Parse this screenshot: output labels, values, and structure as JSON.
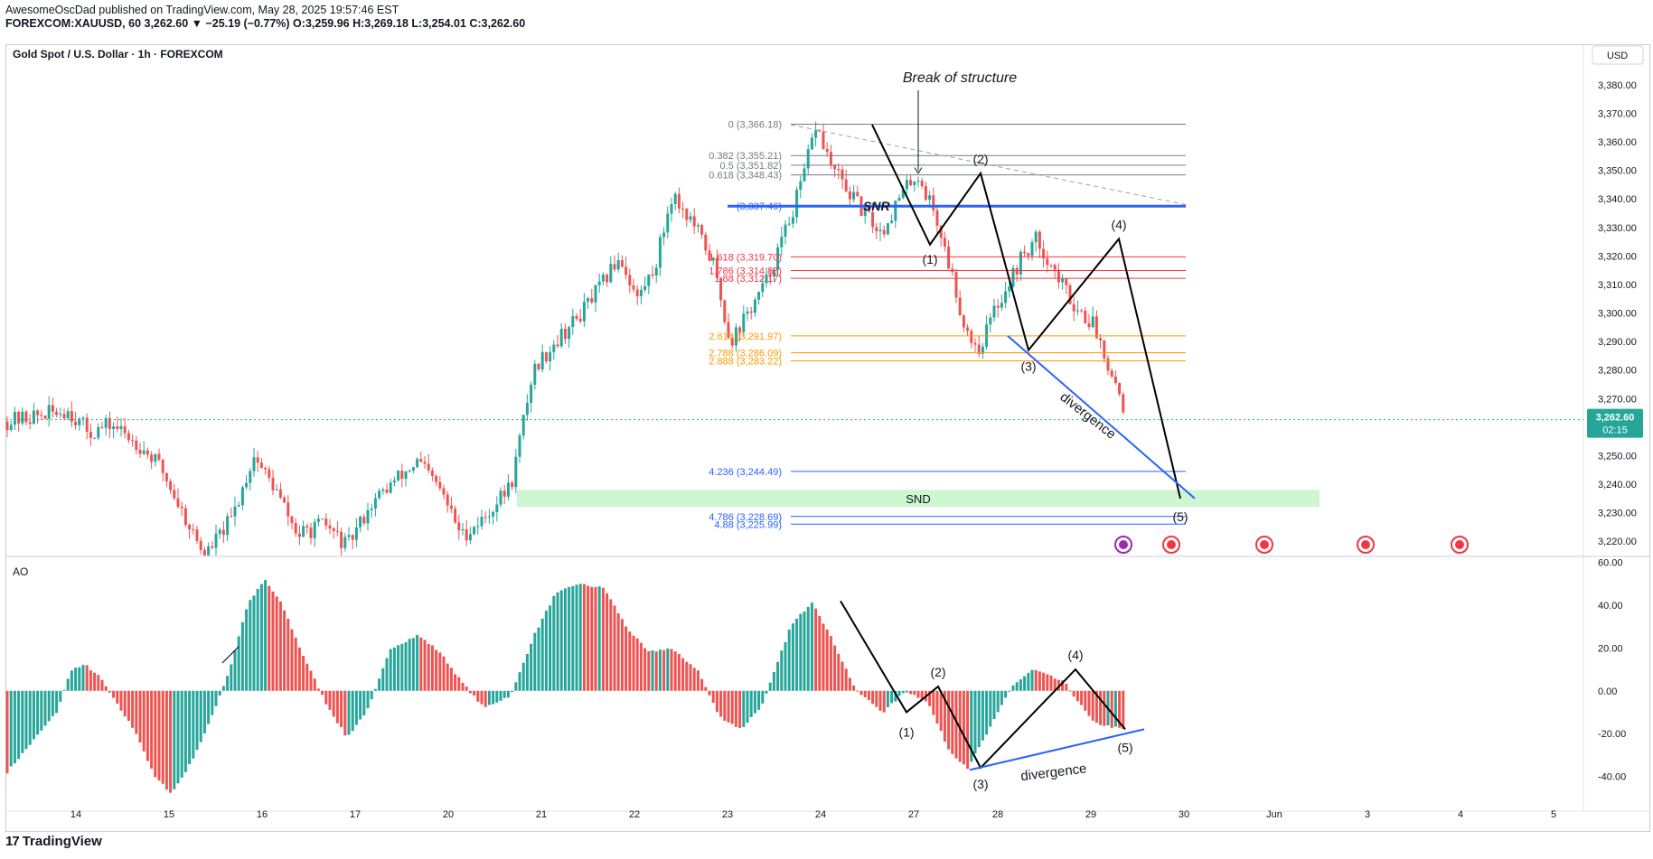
{
  "header": {
    "line1": "AwesomeOscDad published on TradingView.com, May 28, 2025 19:57:46 EST",
    "line2": "FOREXCOM:XAUUSD, 60  3,262.60 ▼ −25.19 (−0.77%)  O:3,259.96  H:3,269.18  L:3,254.01  C:3,262.60"
  },
  "footer": {
    "brand": "TradingView",
    "logo": "17"
  },
  "chart_data": [
    {
      "type": "candlestick",
      "title": "Gold Spot / U.S. Dollar · 1h · FOREXCOM",
      "currency": "USD",
      "ylim": [
        3215,
        3392
      ],
      "y_ticks": [
        "3,380.00",
        "3,370.00",
        "3,360.00",
        "3,350.00",
        "3,340.00",
        "3,330.00",
        "3,320.00",
        "3,310.00",
        "3,300.00",
        "3,290.00",
        "3,280.00",
        "3,270.00",
        "3,250.00",
        "3,240.00",
        "3,230.00",
        "3,220.00"
      ],
      "last_price": {
        "value": 3262.6,
        "label": "3,262.60",
        "countdown": "02:15"
      },
      "x_labels": [
        "14",
        "15",
        "16",
        "17",
        "20",
        "21",
        "22",
        "23",
        "24",
        "27",
        "28",
        "29",
        "30",
        "Jun",
        "3",
        "4",
        "5"
      ],
      "colors": {
        "up": "#26a69a",
        "down": "#ef5350",
        "wave": "#000000",
        "snr": "#2962ff",
        "fib_red": "#f23645",
        "fib_orange": "#ff9800",
        "fib_blue": "#2962ff",
        "fib_gray": "#787b86",
        "snd_zone": "#c8f5cc"
      },
      "price_path": [
        [
          "14",
          3262
        ],
        [
          "14",
          3266
        ],
        [
          "14",
          3258
        ],
        [
          "14",
          3261
        ],
        [
          "15",
          3254
        ],
        [
          "15",
          3246
        ],
        [
          "15",
          3230
        ],
        [
          "15",
          3215
        ],
        [
          "16",
          3228
        ],
        [
          "16",
          3250
        ],
        [
          "16",
          3238
        ],
        [
          "16",
          3222
        ],
        [
          "17",
          3226
        ],
        [
          "17",
          3218
        ],
        [
          "17",
          3232
        ],
        [
          "17",
          3240
        ],
        [
          "20",
          3248
        ],
        [
          "20",
          3238
        ],
        [
          "20",
          3222
        ],
        [
          "20",
          3228
        ],
        [
          "21",
          3240
        ],
        [
          "21",
          3280
        ],
        [
          "21",
          3290
        ],
        [
          "21",
          3298
        ],
        [
          "22",
          3310
        ],
        [
          "22",
          3320
        ],
        [
          "22",
          3305
        ],
        [
          "22",
          3316
        ],
        [
          "22",
          3342
        ],
        [
          "23",
          3330
        ],
        [
          "23",
          3318
        ],
        [
          "23",
          3290
        ],
        [
          "23",
          3300
        ],
        [
          "23",
          3310
        ],
        [
          "24",
          3330
        ],
        [
          "24",
          3345
        ],
        [
          "24",
          3366
        ],
        [
          "24",
          3352
        ],
        [
          "24",
          3344
        ],
        [
          "24",
          3337
        ],
        [
          "27",
          3328
        ],
        [
          "27",
          3340
        ],
        [
          "27",
          3349
        ],
        [
          "27",
          3336
        ],
        [
          "27",
          3314
        ],
        [
          "28",
          3296
        ],
        [
          "28",
          3287
        ],
        [
          "28",
          3300
        ],
        [
          "28",
          3310
        ],
        [
          "28",
          3320
        ],
        [
          "28",
          3326
        ],
        [
          "29",
          3312
        ],
        [
          "29",
          3302
        ],
        [
          "29",
          3296
        ],
        [
          "29",
          3280
        ],
        [
          "29",
          3262.6
        ]
      ],
      "fib_levels": [
        {
          "label": "0 (3,366.18)",
          "value": 3366.18,
          "color": "gray"
        },
        {
          "label": "0.382 (3,355.21)",
          "value": 3355.21,
          "color": "gray"
        },
        {
          "label": "0.5 (3,351.82)",
          "value": 3351.82,
          "color": "gray"
        },
        {
          "label": "0.618 (3,348.43)",
          "value": 3348.43,
          "color": "gray"
        },
        {
          "label": "(3,337.46)",
          "value": 3337.46,
          "color": "snr"
        },
        {
          "label": "1.618 (3,319.70)",
          "value": 3319.7,
          "color": "red"
        },
        {
          "label": "1.786 (3,314.88)",
          "value": 3314.88,
          "color": "red"
        },
        {
          "label": "1.88 (3,312.17)",
          "value": 3312.17,
          "color": "red"
        },
        {
          "label": "2.618 (3,291.97)",
          "value": 3291.97,
          "color": "orange"
        },
        {
          "label": "2.788 (3,286.09)",
          "value": 3286.09,
          "color": "orange"
        },
        {
          "label": "2.888 (3,283.22)",
          "value": 3283.22,
          "color": "orange"
        },
        {
          "label": "4.236 (3,244.49)",
          "value": 3244.49,
          "color": "blue"
        },
        {
          "label": "4.786 (3,228.69)",
          "value": 3228.69,
          "color": "blue"
        },
        {
          "label": "4.88 (3,225.99)",
          "value": 3225.99,
          "color": "blue"
        }
      ],
      "zones": [
        {
          "label": "SND",
          "from": 3232,
          "to": 3238
        }
      ],
      "annotations": {
        "bos": "Break of structure",
        "snr": "SNR",
        "divergence": "divergence",
        "waves": [
          {
            "label": "(1)",
            "value": 3324
          },
          {
            "label": "(2)",
            "value": 3349
          },
          {
            "label": "(3)",
            "value": 3287
          },
          {
            "label": "(4)",
            "value": 3326
          },
          {
            "label": "(5)",
            "value": 3235
          }
        ]
      }
    },
    {
      "type": "bar",
      "title": "AO",
      "ylim": [
        -55,
        62
      ],
      "y_ticks": [
        "60.00",
        "40.00",
        "20.00",
        "0.00",
        "-20.00",
        "-40.00"
      ],
      "colors": {
        "up": "#26a69a",
        "down": "#ef5350"
      },
      "ao_path": [
        [
          "14",
          -38
        ],
        [
          "14",
          -10
        ],
        [
          "14",
          10
        ],
        [
          "14",
          12
        ],
        [
          "14",
          6
        ],
        [
          "14",
          -5
        ],
        [
          "15",
          -20
        ],
        [
          "15",
          -40
        ],
        [
          "15",
          -48
        ],
        [
          "15",
          -35
        ],
        [
          "15",
          -18
        ],
        [
          "16",
          10
        ],
        [
          "16",
          40
        ],
        [
          "16",
          52
        ],
        [
          "16",
          40
        ],
        [
          "16",
          20
        ],
        [
          "17",
          -5
        ],
        [
          "17",
          -22
        ],
        [
          "17",
          -8
        ],
        [
          "17",
          20
        ],
        [
          "20",
          26
        ],
        [
          "20",
          18
        ],
        [
          "20",
          4
        ],
        [
          "20",
          -8
        ],
        [
          "21",
          -2
        ],
        [
          "21",
          25
        ],
        [
          "21",
          45
        ],
        [
          "21",
          50
        ],
        [
          "22",
          48
        ],
        [
          "22",
          30
        ],
        [
          "22",
          18
        ],
        [
          "22",
          20
        ],
        [
          "23",
          10
        ],
        [
          "23",
          -12
        ],
        [
          "23",
          -18
        ],
        [
          "23",
          -6
        ],
        [
          "24",
          30
        ],
        [
          "24",
          42
        ],
        [
          "24",
          22
        ],
        [
          "24",
          0
        ],
        [
          "27",
          -10
        ],
        [
          "27",
          0
        ],
        [
          "27",
          -5
        ],
        [
          "27",
          -28
        ],
        [
          "28",
          -36
        ],
        [
          "28",
          -18
        ],
        [
          "28",
          2
        ],
        [
          "28",
          10
        ],
        [
          "29",
          4
        ],
        [
          "29",
          -15
        ],
        [
          "29",
          -18
        ]
      ],
      "annotations": {
        "divergence": "divergence",
        "waves": [
          {
            "label": "(1)",
            "value": -10
          },
          {
            "label": "(2)",
            "value": 2
          },
          {
            "label": "(3)",
            "value": -36
          },
          {
            "label": "(4)",
            "value": 10
          },
          {
            "label": "(5)",
            "value": -18
          }
        ]
      }
    }
  ]
}
